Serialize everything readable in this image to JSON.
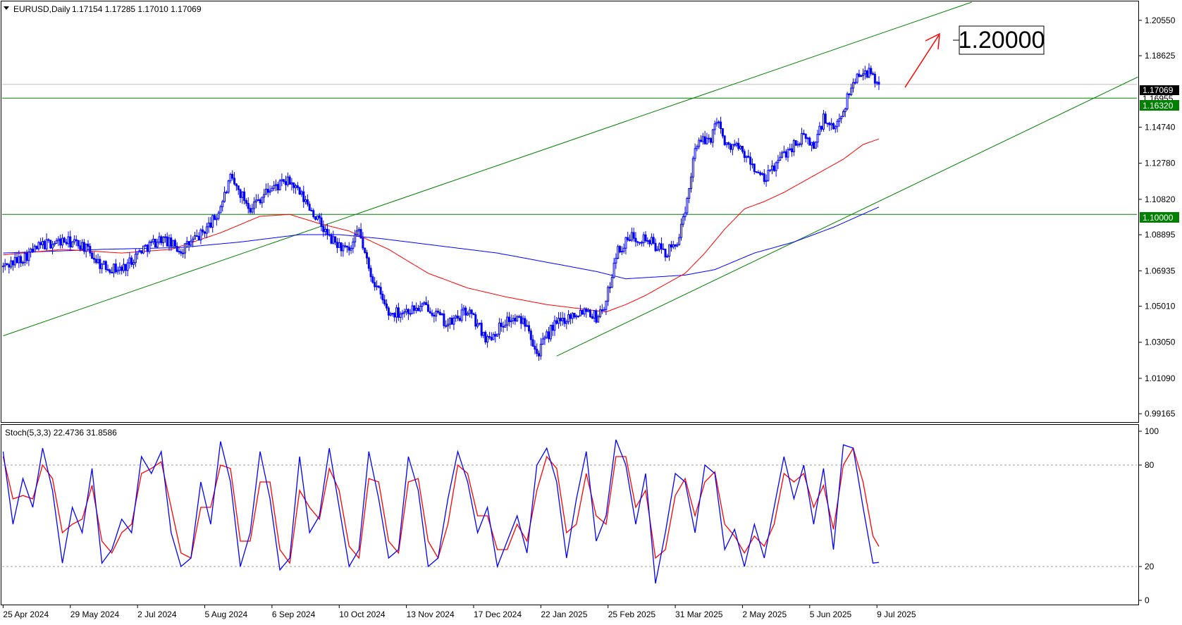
{
  "header": {
    "symbol": "EURUSD,Daily",
    "ohlc": "1.17154 1.17285 1.17010 1.17069"
  },
  "stoch_header": "Stoch(5,3,3) 22.4736 31.8586",
  "annotation": {
    "target_label": "1.20000"
  },
  "price_labels": {
    "current": "1.17069",
    "hidden": "1.16955",
    "level_1": "1.16320",
    "level_2": "1.10000"
  },
  "colors": {
    "bull_candle": "#0000ff",
    "bear_candle": "#0000ff",
    "ma_fast": "#ff0000",
    "ma_slow": "#0000ff",
    "channel": "#008000",
    "hlines": "#008000",
    "stoch_main": "#0000ff",
    "stoch_signal": "#ff0000",
    "arrow": "#ff0000"
  },
  "chart_data": {
    "type": "candlestick",
    "price_axis": {
      "ylim": [
        0.9875,
        1.2154
      ],
      "ticks": [
        "1.20550",
        "1.18625",
        "1.14740",
        "1.12780",
        "1.10820",
        "1.08895",
        "1.06935",
        "1.05010",
        "1.03050",
        "1.01090",
        "0.99165"
      ]
    },
    "time_axis": {
      "ticks": [
        "25 Apr 2024",
        "29 May 2024",
        "2 Jul 2024",
        "5 Aug 2024",
        "6 Sep 2024",
        "10 Oct 2024",
        "13 Nov 2024",
        "17 Dec 2024",
        "22 Jan 2025",
        "25 Feb 2025",
        "31 Mar 2025",
        "2 May 2025",
        "5 Jun 2025",
        "9 Jul 2025"
      ]
    },
    "price_path": [
      [
        0,
        1.0715
      ],
      [
        10,
        1.0765
      ],
      [
        20,
        1.0835
      ],
      [
        30,
        1.0855
      ],
      [
        40,
        1.0835
      ],
      [
        50,
        1.072
      ],
      [
        60,
        1.07
      ],
      [
        70,
        1.081
      ],
      [
        80,
        1.087
      ],
      [
        90,
        1.0805
      ],
      [
        100,
        1.089
      ],
      [
        108,
        1.099
      ],
      [
        115,
        1.119
      ],
      [
        125,
        1.104
      ],
      [
        135,
        1.114
      ],
      [
        145,
        1.118
      ],
      [
        155,
        1.104
      ],
      [
        165,
        1.087
      ],
      [
        175,
        1.079
      ],
      [
        180,
        1.091
      ],
      [
        185,
        1.07
      ],
      [
        195,
        1.046
      ],
      [
        205,
        1.048
      ],
      [
        215,
        1.05
      ],
      [
        225,
        1.04
      ],
      [
        235,
        1.048
      ],
      [
        245,
        1.032
      ],
      [
        255,
        1.043
      ],
      [
        265,
        1.042
      ],
      [
        270,
        1.024
      ],
      [
        278,
        1.039
      ],
      [
        285,
        1.044
      ],
      [
        295,
        1.049
      ],
      [
        300,
        1.044
      ],
      [
        305,
        1.052
      ],
      [
        310,
        1.079
      ],
      [
        318,
        1.088
      ],
      [
        325,
        1.087
      ],
      [
        335,
        1.079
      ],
      [
        340,
        1.083
      ],
      [
        345,
        1.099
      ],
      [
        350,
        1.138
      ],
      [
        355,
        1.14
      ],
      [
        358,
        1.142
      ],
      [
        362,
        1.153
      ],
      [
        365,
        1.137
      ],
      [
        370,
        1.138
      ],
      [
        375,
        1.132
      ],
      [
        380,
        1.125
      ],
      [
        385,
        1.118
      ],
      [
        390,
        1.126
      ],
      [
        395,
        1.133
      ],
      [
        400,
        1.138
      ],
      [
        405,
        1.142
      ],
      [
        410,
        1.137
      ],
      [
        415,
        1.152
      ],
      [
        420,
        1.145
      ],
      [
        425,
        1.157
      ],
      [
        430,
        1.172
      ],
      [
        435,
        1.179
      ],
      [
        440,
        1.175
      ],
      [
        443,
        1.1707
      ]
    ],
    "ma_fast": [
      [
        0,
        1.078
      ],
      [
        30,
        1.081
      ],
      [
        60,
        1.079
      ],
      [
        85,
        1.081
      ],
      [
        110,
        1.09
      ],
      [
        130,
        1.099
      ],
      [
        145,
        1.1
      ],
      [
        160,
        1.095
      ],
      [
        175,
        1.091
      ],
      [
        195,
        1.081
      ],
      [
        215,
        1.068
      ],
      [
        235,
        1.06
      ],
      [
        255,
        1.055
      ],
      [
        275,
        1.051
      ],
      [
        290,
        1.049
      ],
      [
        305,
        1.047
      ],
      [
        315,
        1.051
      ],
      [
        325,
        1.056
      ],
      [
        335,
        1.062
      ],
      [
        345,
        1.068
      ],
      [
        355,
        1.079
      ],
      [
        365,
        1.092
      ],
      [
        375,
        1.103
      ],
      [
        385,
        1.107
      ],
      [
        395,
        1.112
      ],
      [
        405,
        1.118
      ],
      [
        415,
        1.124
      ],
      [
        425,
        1.13
      ],
      [
        435,
        1.138
      ],
      [
        443,
        1.141
      ]
    ],
    "ma_slow": [
      [
        0,
        1.079
      ],
      [
        50,
        1.081
      ],
      [
        90,
        1.082
      ],
      [
        120,
        1.085
      ],
      [
        150,
        1.089
      ],
      [
        170,
        1.089
      ],
      [
        190,
        1.087
      ],
      [
        220,
        1.083
      ],
      [
        250,
        1.079
      ],
      [
        280,
        1.073
      ],
      [
        300,
        1.069
      ],
      [
        315,
        1.065
      ],
      [
        330,
        1.066
      ],
      [
        345,
        1.067
      ],
      [
        360,
        1.07
      ],
      [
        380,
        1.079
      ],
      [
        400,
        1.085
      ],
      [
        420,
        1.093
      ],
      [
        443,
        1.104
      ]
    ],
    "horizontal_levels": [
      1.1632,
      1.1
    ],
    "current_price": 1.17069,
    "channel_upper": [
      [
        0,
        1.034
      ],
      [
        490,
        1.2154
      ]
    ],
    "channel_lower": [
      [
        280,
        1.023
      ],
      [
        574,
        1.1747
      ]
    ],
    "stochastic": {
      "ylim": [
        0,
        100
      ],
      "ticks": [
        "100",
        "80",
        "20",
        "0"
      ],
      "levels": [
        80,
        20
      ],
      "main": [
        [
          0,
          88
        ],
        [
          5,
          45
        ],
        [
          10,
          72
        ],
        [
          15,
          55
        ],
        [
          20,
          90
        ],
        [
          25,
          65
        ],
        [
          30,
          22
        ],
        [
          35,
          55
        ],
        [
          40,
          40
        ],
        [
          45,
          78
        ],
        [
          50,
          22
        ],
        [
          55,
          30
        ],
        [
          60,
          48
        ],
        [
          65,
          40
        ],
        [
          70,
          85
        ],
        [
          75,
          75
        ],
        [
          80,
          88
        ],
        [
          85,
          40
        ],
        [
          90,
          20
        ],
        [
          95,
          25
        ],
        [
          100,
          70
        ],
        [
          105,
          45
        ],
        [
          110,
          94
        ],
        [
          115,
          70
        ],
        [
          120,
          20
        ],
        [
          125,
          40
        ],
        [
          130,
          88
        ],
        [
          135,
          60
        ],
        [
          140,
          18
        ],
        [
          145,
          25
        ],
        [
          150,
          85
        ],
        [
          155,
          40
        ],
        [
          160,
          50
        ],
        [
          165,
          90
        ],
        [
          170,
          55
        ],
        [
          175,
          20
        ],
        [
          180,
          30
        ],
        [
          185,
          88
        ],
        [
          190,
          60
        ],
        [
          195,
          25
        ],
        [
          200,
          30
        ],
        [
          205,
          85
        ],
        [
          210,
          65
        ],
        [
          215,
          20
        ],
        [
          220,
          25
        ],
        [
          225,
          60
        ],
        [
          230,
          88
        ],
        [
          235,
          70
        ],
        [
          240,
          40
        ],
        [
          245,
          55
        ],
        [
          250,
          20
        ],
        [
          255,
          35
        ],
        [
          260,
          50
        ],
        [
          265,
          28
        ],
        [
          270,
          80
        ],
        [
          275,
          90
        ],
        [
          280,
          70
        ],
        [
          285,
          25
        ],
        [
          290,
          60
        ],
        [
          295,
          88
        ],
        [
          300,
          35
        ],
        [
          305,
          50
        ],
        [
          310,
          95
        ],
        [
          315,
          80
        ],
        [
          320,
          45
        ],
        [
          325,
          75
        ],
        [
          330,
          10
        ],
        [
          335,
          40
        ],
        [
          340,
          75
        ],
        [
          345,
          70
        ],
        [
          350,
          40
        ],
        [
          355,
          80
        ],
        [
          360,
          75
        ],
        [
          365,
          30
        ],
        [
          370,
          42
        ],
        [
          375,
          20
        ],
        [
          380,
          45
        ],
        [
          385,
          25
        ],
        [
          390,
          55
        ],
        [
          395,
          85
        ],
        [
          400,
          60
        ],
        [
          405,
          80
        ],
        [
          410,
          45
        ],
        [
          415,
          78
        ],
        [
          420,
          30
        ],
        [
          425,
          92
        ],
        [
          430,
          90
        ],
        [
          435,
          55
        ],
        [
          440,
          22
        ],
        [
          443,
          22.47
        ]
      ],
      "signal": [
        [
          0,
          85
        ],
        [
          5,
          60
        ],
        [
          10,
          62
        ],
        [
          15,
          60
        ],
        [
          20,
          80
        ],
        [
          25,
          72
        ],
        [
          30,
          40
        ],
        [
          35,
          45
        ],
        [
          40,
          48
        ],
        [
          45,
          68
        ],
        [
          50,
          35
        ],
        [
          55,
          28
        ],
        [
          60,
          40
        ],
        [
          65,
          45
        ],
        [
          70,
          75
        ],
        [
          75,
          78
        ],
        [
          80,
          82
        ],
        [
          85,
          55
        ],
        [
          90,
          28
        ],
        [
          95,
          25
        ],
        [
          100,
          55
        ],
        [
          105,
          55
        ],
        [
          110,
          80
        ],
        [
          115,
          78
        ],
        [
          120,
          35
        ],
        [
          125,
          35
        ],
        [
          130,
          70
        ],
        [
          135,
          70
        ],
        [
          140,
          30
        ],
        [
          145,
          22
        ],
        [
          150,
          65
        ],
        [
          155,
          55
        ],
        [
          160,
          48
        ],
        [
          165,
          78
        ],
        [
          170,
          65
        ],
        [
          175,
          32
        ],
        [
          180,
          25
        ],
        [
          185,
          72
        ],
        [
          190,
          70
        ],
        [
          195,
          35
        ],
        [
          200,
          28
        ],
        [
          205,
          70
        ],
        [
          210,
          72
        ],
        [
          215,
          35
        ],
        [
          220,
          25
        ],
        [
          225,
          45
        ],
        [
          230,
          80
        ],
        [
          235,
          75
        ],
        [
          240,
          50
        ],
        [
          245,
          50
        ],
        [
          250,
          30
        ],
        [
          255,
          30
        ],
        [
          260,
          45
        ],
        [
          265,
          35
        ],
        [
          270,
          65
        ],
        [
          275,
          85
        ],
        [
          280,
          78
        ],
        [
          285,
          40
        ],
        [
          290,
          45
        ],
        [
          295,
          75
        ],
        [
          300,
          50
        ],
        [
          305,
          45
        ],
        [
          310,
          85
        ],
        [
          315,
          85
        ],
        [
          320,
          55
        ],
        [
          325,
          65
        ],
        [
          330,
          25
        ],
        [
          335,
          30
        ],
        [
          340,
          62
        ],
        [
          345,
          72
        ],
        [
          350,
          50
        ],
        [
          355,
          70
        ],
        [
          360,
          76
        ],
        [
          365,
          45
        ],
        [
          370,
          38
        ],
        [
          375,
          28
        ],
        [
          380,
          38
        ],
        [
          385,
          32
        ],
        [
          390,
          45
        ],
        [
          395,
          75
        ],
        [
          400,
          70
        ],
        [
          405,
          75
        ],
        [
          410,
          55
        ],
        [
          415,
          68
        ],
        [
          420,
          42
        ],
        [
          425,
          80
        ],
        [
          430,
          90
        ],
        [
          435,
          70
        ],
        [
          440,
          38
        ],
        [
          443,
          31.86
        ]
      ]
    }
  }
}
